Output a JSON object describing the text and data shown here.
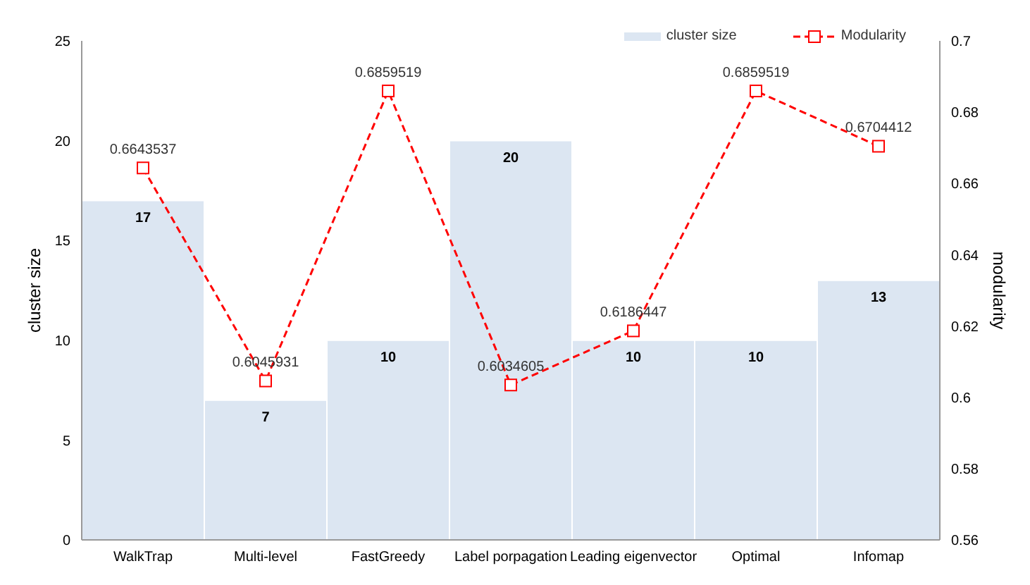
{
  "chart_data": {
    "type": "bar",
    "categories": [
      "WalkTrap",
      "Multi-level",
      "FastGreedy",
      "Label porpagation",
      "Leading eigenvector",
      "Optimal",
      "Infomap"
    ],
    "series": [
      {
        "name": "cluster size",
        "color": "#dce6f2",
        "values": [
          17,
          7,
          10,
          20,
          10,
          10,
          13
        ]
      },
      {
        "name": "Modularity",
        "type": "line",
        "axis": "y2",
        "color": "#ff0000",
        "marker": "square",
        "line_style": "dashed",
        "values": [
          0.6643537,
          0.6045931,
          0.6859519,
          0.6034605,
          0.6186447,
          0.6859519,
          0.6704412
        ]
      }
    ],
    "ylabel": "cluster size",
    "y2label": "modularity",
    "ylim": [
      0,
      25
    ],
    "yticks": [
      0,
      5,
      10,
      15,
      20,
      25
    ],
    "y2lim": [
      0.56,
      0.7
    ],
    "y2ticks": [
      0.56,
      0.58,
      0.6,
      0.62,
      0.64,
      0.66,
      0.68,
      0.7
    ],
    "data_labels": true,
    "legend": "top right",
    "grid": false
  }
}
